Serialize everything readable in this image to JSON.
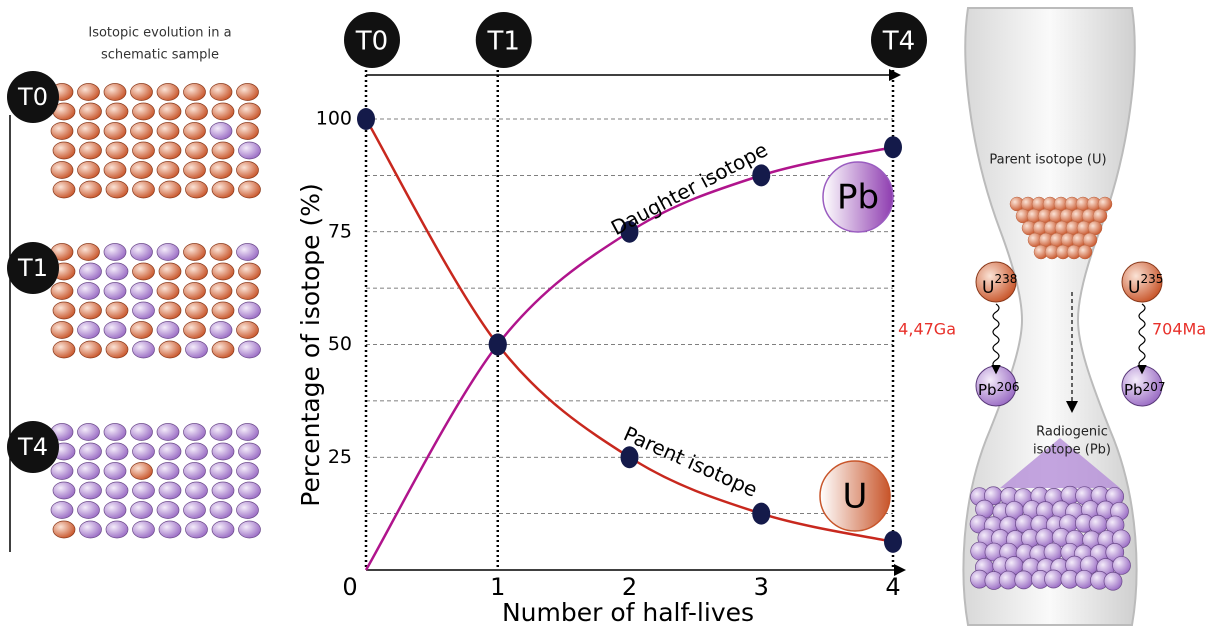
{
  "chart_data": {
    "type": "line",
    "x_label": "Number of half-lives",
    "y_label": "Percentage of isotope (%)",
    "x": [
      0,
      1,
      2,
      3,
      4
    ],
    "xlim": [
      0,
      4
    ],
    "ylim": [
      0,
      100
    ],
    "xticks": [
      0,
      1,
      2,
      3,
      4
    ],
    "yticks": [
      25,
      50,
      75,
      100
    ],
    "ygrid": [
      12.5,
      25,
      37.5,
      50,
      62.5,
      75,
      87.5,
      100
    ],
    "series": [
      {
        "name": "Daughter isotope",
        "color": "#b0148c",
        "values": [
          0,
          50,
          75,
          87.5,
          93.75
        ],
        "element": "Pb",
        "element_color": "#9a5cc0"
      },
      {
        "name": "Parent isotope",
        "color": "#c8281e",
        "values": [
          100,
          50,
          25,
          12.5,
          6.25
        ],
        "element": "U",
        "element_color": "#c8552a"
      }
    ],
    "marker_color": "#141a4a",
    "time_markers": [
      {
        "label": "T0",
        "x": 0
      },
      {
        "label": "T1",
        "x": 1
      },
      {
        "label": "T4",
        "x": 4
      }
    ]
  },
  "sample_panel": {
    "title": [
      "Isotopic evolution in a",
      "schematic sample"
    ],
    "stages": [
      {
        "label": "T0"
      },
      {
        "label": "T1"
      },
      {
        "label": "T4"
      }
    ]
  },
  "hourglass": {
    "top_label": "Parent isotope (U)",
    "bottom_label": [
      "Radiogenic",
      "isotope (Pb)"
    ],
    "decays": [
      {
        "parent": "U",
        "parent_mass": "238",
        "daughter": "Pb",
        "daughter_mass": "206",
        "half_life": "4,47Ga"
      },
      {
        "parent": "U",
        "parent_mass": "235",
        "daughter": "Pb",
        "daughter_mass": "207",
        "half_life": "704Ma"
      }
    ]
  }
}
